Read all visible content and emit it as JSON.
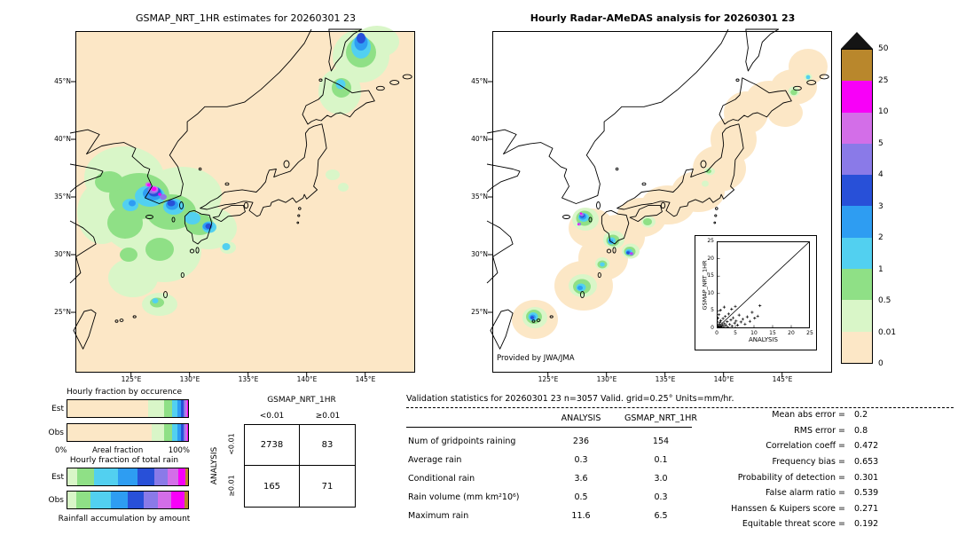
{
  "chart_data": [
    {
      "id": "gsmap_map",
      "type": "heatmap",
      "title": "GSMAP_NRT_1HR estimates for 20260301 23",
      "units": "mm/hr",
      "lat_ticks": [
        "45°N",
        "40°N",
        "35°N",
        "30°N",
        "25°N"
      ],
      "lon_ticks": [
        "125°E",
        "130°E",
        "135°E",
        "140°E",
        "145°E"
      ]
    },
    {
      "id": "radar_map",
      "type": "heatmap",
      "title": "Hourly Radar-AMeDAS analysis for 20260301 23",
      "credit": "Provided by JWA/JMA",
      "units": "mm/hr",
      "lat_ticks": [
        "45°N",
        "40°N",
        "35°N",
        "30°N",
        "25°N"
      ],
      "lon_ticks": [
        "125°E",
        "130°E",
        "135°E",
        "140°E",
        "145°E"
      ]
    },
    {
      "id": "colorbar",
      "type": "legend",
      "labels": [
        "50",
        "25",
        "10",
        "5",
        "4",
        "3",
        "2",
        "1",
        "0.5",
        "0.01",
        "0"
      ],
      "colors": [
        "#b9872c",
        "#f800f8",
        "#d36ee8",
        "#8a7ae8",
        "#2850d8",
        "#2e9df2",
        "#52d0f0",
        "#8fe086",
        "#d9f6c8",
        "#fce7c6"
      ]
    },
    {
      "id": "inset_scatter",
      "type": "scatter",
      "xlabel": "ANALYSIS",
      "ylabel": "GSMAP_NRT_1HR",
      "xlim": [
        0,
        25
      ],
      "ylim": [
        0,
        25
      ],
      "tick_labels": [
        "0",
        "5",
        "10",
        "15",
        "20",
        "25"
      ],
      "points": [
        [
          0.1,
          0.1
        ],
        [
          0.2,
          0.3
        ],
        [
          0.3,
          0.1
        ],
        [
          0.4,
          0.6
        ],
        [
          0.5,
          0.2
        ],
        [
          0.6,
          1.1
        ],
        [
          0.7,
          0.3
        ],
        [
          0.8,
          0.1
        ],
        [
          0.9,
          1.6
        ],
        [
          1,
          0.4
        ],
        [
          1.1,
          2.2
        ],
        [
          1.2,
          0.7
        ],
        [
          1.4,
          0.2
        ],
        [
          1.5,
          1
        ],
        [
          1.7,
          2.8
        ],
        [
          1.9,
          0.5
        ],
        [
          2.1,
          1.3
        ],
        [
          2.3,
          3.4
        ],
        [
          2.5,
          0.8
        ],
        [
          2.8,
          1.9
        ],
        [
          3,
          0.3
        ],
        [
          3.2,
          4.1
        ],
        [
          3.5,
          1.1
        ],
        [
          3.8,
          2.4
        ],
        [
          4.1,
          0.6
        ],
        [
          4.4,
          3
        ],
        [
          4.8,
          1.5
        ],
        [
          5.2,
          2.1
        ],
        [
          5.6,
          0.9
        ],
        [
          6,
          3.8
        ],
        [
          6.5,
          1.8
        ],
        [
          7,
          2.6
        ],
        [
          7.6,
          1.2
        ],
        [
          8.2,
          3.3
        ],
        [
          8.9,
          2
        ],
        [
          9.5,
          4.6
        ],
        [
          10.2,
          2.9
        ],
        [
          11,
          3.5
        ],
        [
          11.6,
          6.5
        ],
        [
          0.3,
          2.9
        ],
        [
          0.6,
          3.9
        ],
        [
          1,
          5.2
        ],
        [
          2,
          6.1
        ],
        [
          0.2,
          1.8
        ],
        [
          4,
          5.5
        ],
        [
          5,
          6.3
        ]
      ]
    },
    {
      "id": "occurrence_bars",
      "type": "bar",
      "title": "Hourly fraction by occurence",
      "x_min_label": "0%",
      "x_axis_label": "Areal fraction",
      "x_max_label": "100%",
      "rows": [
        {
          "label": "Est",
          "segments": [
            [
              "#fce7c6",
              67
            ],
            [
              "#d9f6c8",
              13
            ],
            [
              "#8fe086",
              7
            ],
            [
              "#52d0f0",
              4
            ],
            [
              "#2e9df2",
              3
            ],
            [
              "#2850d8",
              2.5
            ],
            [
              "#8a7ae8",
              1.5
            ],
            [
              "#d36ee8",
              1
            ],
            [
              "#f800f8",
              1
            ]
          ]
        },
        {
          "label": "Obs",
          "segments": [
            [
              "#fce7c6",
              70
            ],
            [
              "#d9f6c8",
              10
            ],
            [
              "#8fe086",
              7
            ],
            [
              "#52d0f0",
              4
            ],
            [
              "#2e9df2",
              3
            ],
            [
              "#2850d8",
              2.5
            ],
            [
              "#8a7ae8",
              1.5
            ],
            [
              "#d36ee8",
              1
            ],
            [
              "#f800f8",
              1
            ]
          ]
        }
      ]
    },
    {
      "id": "total_rain_bars",
      "type": "bar",
      "title": "Hourly fraction of total rain",
      "caption": "Rainfall accumulation by amount",
      "rows": [
        {
          "label": "Est",
          "segments": [
            [
              "#d9f6c8",
              8
            ],
            [
              "#8fe086",
              14
            ],
            [
              "#52d0f0",
              20
            ],
            [
              "#2e9df2",
              16
            ],
            [
              "#2850d8",
              14
            ],
            [
              "#8a7ae8",
              11
            ],
            [
              "#d36ee8",
              9
            ],
            [
              "#f800f8",
              6
            ],
            [
              "#b9872c",
              2
            ]
          ]
        },
        {
          "label": "Obs",
          "segments": [
            [
              "#d9f6c8",
              7
            ],
            [
              "#8fe086",
              12
            ],
            [
              "#52d0f0",
              17
            ],
            [
              "#2e9df2",
              14
            ],
            [
              "#2850d8",
              13
            ],
            [
              "#8a7ae8",
              12
            ],
            [
              "#d36ee8",
              11
            ],
            [
              "#f800f8",
              11
            ],
            [
              "#b9872c",
              3
            ]
          ]
        }
      ]
    },
    {
      "id": "contingency_table",
      "type": "table",
      "col_group": "GSMAP_NRT_1HR",
      "col_headers": [
        "<0.01",
        "≥0.01"
      ],
      "row_group": "ANALYSIS",
      "row_headers": [
        "<0.01",
        "≥0.01"
      ],
      "cells": [
        [
          "2738",
          "83"
        ],
        [
          "165",
          "71"
        ]
      ]
    },
    {
      "id": "validation_stats",
      "type": "table",
      "title": "Validation statistics for 20260301 23  n=3057 Valid. grid=0.25° Units=mm/hr.",
      "col_headers": [
        "ANALYSIS",
        "GSMAP_NRT_1HR"
      ],
      "rows": [
        [
          "Num of gridpoints raining",
          "236",
          "154"
        ],
        [
          "Average rain",
          "0.3",
          "0.1"
        ],
        [
          "Conditional rain",
          "3.6",
          "3.0"
        ],
        [
          "Rain volume (mm km²10⁶)",
          "0.5",
          "0.3"
        ],
        [
          "Maximum rain",
          "11.6",
          "6.5"
        ]
      ],
      "scores": [
        [
          "Mean abs error =",
          "0.2"
        ],
        [
          "RMS error =",
          "0.8"
        ],
        [
          "Correlation coeff =",
          "0.472"
        ],
        [
          "Frequency bias =",
          "0.653"
        ],
        [
          "Probability of detection =",
          "0.301"
        ],
        [
          "False alarm ratio =",
          "0.539"
        ],
        [
          "Hanssen & Kuipers score =",
          "0.271"
        ],
        [
          "Equitable threat score =",
          "0.192"
        ]
      ]
    }
  ]
}
